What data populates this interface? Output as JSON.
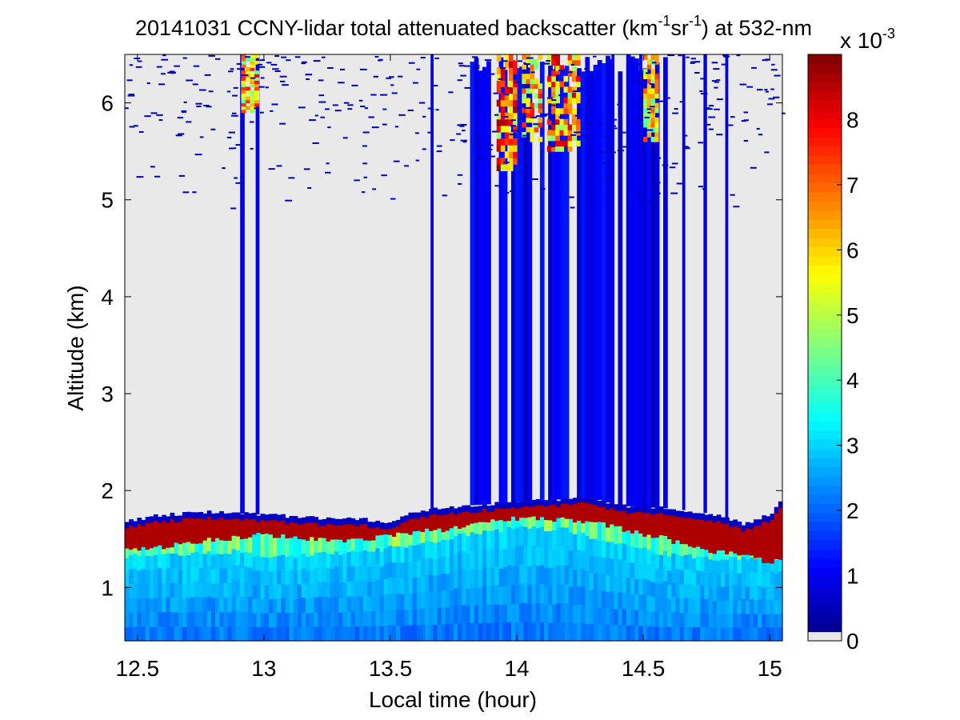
{
  "chart_data": {
    "type": "heatmap",
    "title": {
      "prefix": "20141031 CCNY-lidar total attenuated backscatter (km",
      "sup1": "-1",
      "mid": "sr",
      "sup2": "-1",
      "suffix": ") at 532-nm"
    },
    "xlabel": "Local time (hour)",
    "ylabel": "Altitude (km)",
    "xlim": [
      12.45,
      15.05
    ],
    "ylim": [
      0.45,
      6.5
    ],
    "x_ticks": [
      "12.5",
      "13",
      "13.5",
      "14",
      "14.5",
      "15"
    ],
    "x_tick_values": [
      12.5,
      13,
      13.5,
      14,
      14.5,
      15
    ],
    "y_ticks": [
      "1",
      "2",
      "3",
      "4",
      "5",
      "6"
    ],
    "y_tick_values": [
      1,
      2,
      3,
      4,
      5,
      6
    ],
    "colorbar": {
      "range": [
        0,
        9
      ],
      "ticks": [
        "0",
        "1",
        "2",
        "3",
        "4",
        "5",
        "6",
        "7",
        "8"
      ],
      "tick_values": [
        0,
        1,
        2,
        3,
        4,
        5,
        6,
        7,
        8
      ],
      "exponent_base": "x 10",
      "exponent_power": "-3",
      "colormap": "jet",
      "below_min_color": "#e9e9e9"
    },
    "background_color": "#e9e9e9",
    "grid": false,
    "features": {
      "lower_layer_top_km": [
        [
          12.45,
          1.33
        ],
        [
          12.7,
          1.35
        ],
        [
          12.9,
          1.38
        ],
        [
          13.0,
          1.3
        ],
        [
          13.2,
          1.35
        ],
        [
          13.4,
          1.37
        ],
        [
          13.6,
          1.45
        ],
        [
          13.8,
          1.55
        ],
        [
          14.0,
          1.62
        ],
        [
          14.2,
          1.6
        ],
        [
          14.4,
          1.45
        ],
        [
          14.6,
          1.35
        ],
        [
          14.8,
          1.3
        ],
        [
          15.05,
          1.3
        ]
      ],
      "cloud_band_top_km": [
        [
          12.45,
          1.68
        ],
        [
          12.6,
          1.75
        ],
        [
          12.8,
          1.78
        ],
        [
          13.0,
          1.75
        ],
        [
          13.2,
          1.72
        ],
        [
          13.4,
          1.7
        ],
        [
          13.5,
          1.68
        ],
        [
          13.6,
          1.78
        ],
        [
          13.8,
          1.85
        ],
        [
          14.0,
          1.88
        ],
        [
          14.2,
          1.92
        ],
        [
          14.3,
          1.93
        ],
        [
          14.4,
          1.85
        ],
        [
          14.6,
          1.82
        ],
        [
          14.8,
          1.75
        ],
        [
          14.9,
          1.65
        ],
        [
          15.0,
          1.75
        ],
        [
          15.05,
          1.9
        ]
      ],
      "cloud_band_base_km": [
        [
          12.45,
          1.38
        ],
        [
          12.6,
          1.42
        ],
        [
          12.8,
          1.5
        ],
        [
          13.0,
          1.55
        ],
        [
          13.2,
          1.5
        ],
        [
          13.4,
          1.48
        ],
        [
          13.5,
          1.55
        ],
        [
          13.7,
          1.6
        ],
        [
          13.9,
          1.7
        ],
        [
          14.1,
          1.72
        ],
        [
          14.3,
          1.68
        ],
        [
          14.45,
          1.58
        ],
        [
          14.6,
          1.5
        ],
        [
          14.75,
          1.38
        ],
        [
          14.9,
          1.35
        ],
        [
          15.0,
          1.25
        ],
        [
          15.05,
          1.3
        ]
      ],
      "virga_columns": [
        {
          "x": 12.915,
          "w": 0.018,
          "top": 6.5,
          "level": 0.9
        },
        {
          "x": 12.975,
          "w": 0.015,
          "top": 6.5,
          "level": 0.9
        },
        {
          "x": 13.665,
          "w": 0.012,
          "top": 6.5,
          "level": 0.9
        },
        {
          "x": 14.155,
          "w": 0.012,
          "top": 6.5,
          "level": 0.95
        },
        {
          "x": 14.38,
          "w": 0.012,
          "top": 6.5,
          "level": 0.95
        },
        {
          "x": 14.49,
          "w": 0.012,
          "top": 6.5,
          "level": 0.95
        },
        {
          "x": 14.66,
          "w": 0.012,
          "top": 6.5,
          "level": 0.9
        },
        {
          "x": 14.745,
          "w": 0.014,
          "top": 6.5,
          "level": 0.9
        },
        {
          "x": 14.83,
          "w": 0.012,
          "top": 6.5,
          "level": 0.9
        }
      ],
      "upper_cloud_region": {
        "x0": 13.82,
        "x1": 14.6,
        "y0": 1.9,
        "y1": 6.5
      },
      "upper_cloud_cores": [
        {
          "x0": 13.92,
          "x1": 14.0,
          "y0": 5.3,
          "y1": 6.5,
          "level": 8.5
        },
        {
          "x0": 14.02,
          "x1": 14.1,
          "y0": 5.6,
          "y1": 6.5,
          "level": 7.5
        },
        {
          "x0": 14.12,
          "x1": 14.25,
          "y0": 5.5,
          "y1": 6.5,
          "level": 8.0
        },
        {
          "x0": 14.5,
          "x1": 14.56,
          "y0": 5.6,
          "y1": 6.5,
          "level": 7.0
        },
        {
          "x0": 12.91,
          "x1": 12.98,
          "y0": 5.9,
          "y1": 6.5,
          "level": 7.5
        }
      ]
    }
  }
}
